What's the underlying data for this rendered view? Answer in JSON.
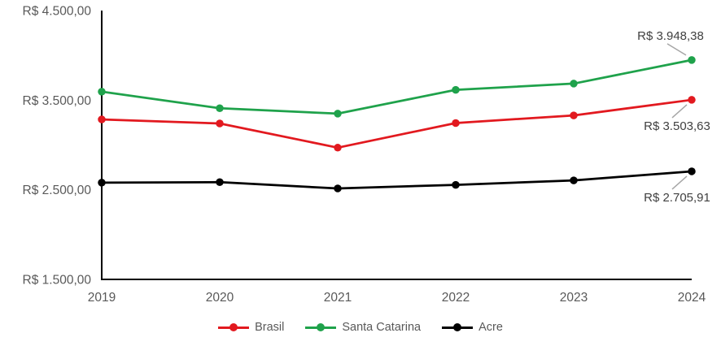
{
  "chart_data": {
    "type": "line",
    "title": "",
    "xlabel": "",
    "ylabel": "",
    "grid": false,
    "categories": [
      "2019",
      "2020",
      "2021",
      "2022",
      "2023",
      "2024"
    ],
    "y_axis": {
      "min": 1500,
      "max": 4500,
      "tick_values": [
        1500,
        2500,
        3500,
        4500
      ],
      "tick_labels": [
        "R$ 1.500,00",
        "R$ 2.500,00",
        "R$ 3.500,00",
        "R$ 4.500,00"
      ]
    },
    "series": [
      {
        "name": "Brasil",
        "color": "#e2191f",
        "values": [
          3285,
          3240,
          2970,
          3245,
          3330,
          3503.63
        ],
        "end_label": "R$ 3.503,63",
        "end_label_position": "below"
      },
      {
        "name": "Santa Catarina",
        "color": "#1fa24b",
        "values": [
          3595,
          3410,
          3350,
          3615,
          3685,
          3948.38
        ],
        "end_label": "R$ 3.948,38",
        "end_label_position": "above"
      },
      {
        "name": "Acre",
        "color": "#000000",
        "values": [
          2580,
          2585,
          2515,
          2555,
          2605,
          2705.91
        ],
        "end_label": "R$ 2.705,91",
        "end_label_position": "below"
      }
    ],
    "legend": {
      "position": "bottom",
      "items": [
        "Brasil",
        "Santa Catarina",
        "Acre"
      ]
    }
  },
  "colors": {
    "axis_line": "#000000",
    "tick_text": "#595959",
    "callout_text": "#404040",
    "leader_line": "#a6a6a6",
    "background": "#ffffff"
  }
}
